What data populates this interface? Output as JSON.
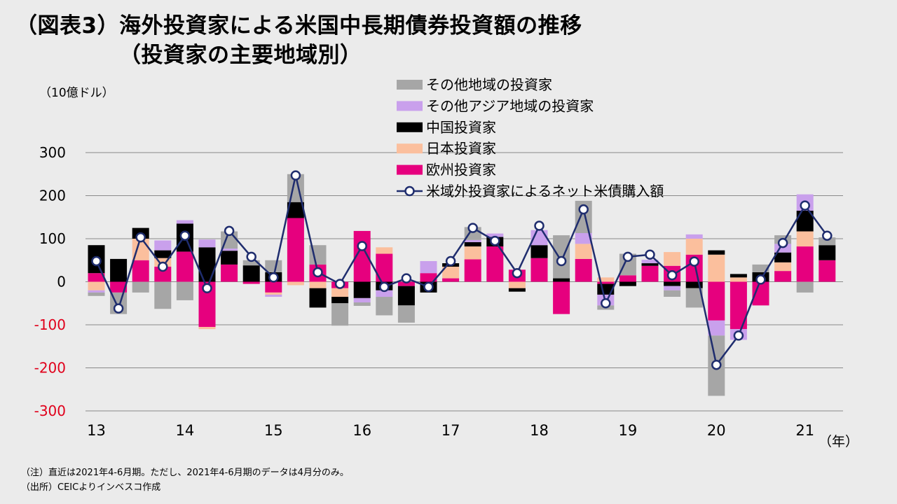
{
  "title": {
    "line1": "（図表3）海外投資家による米国中長期債券投資額の推移",
    "line2": "（投資家の主要地域別）"
  },
  "notes": [
    "（注）直近は2021年4-6月期。ただし、2021年4-6月期のデータは4月分のみ。",
    "（出所）CEICよりインベスコ作成"
  ],
  "chart_data": {
    "type": "bar",
    "stacked": true,
    "unit_label": "（10億ドル）",
    "x_suffix": "（年）",
    "ylim": [
      -300,
      300
    ],
    "y_ticks": [
      300,
      200,
      100,
      0,
      -100,
      -200,
      -300
    ],
    "grid": true,
    "negative_tick_color": "#e0001b",
    "year_labels": [
      {
        "label": "13",
        "index": 0
      },
      {
        "label": "14",
        "index": 4
      },
      {
        "label": "15",
        "index": 8
      },
      {
        "label": "16",
        "index": 12
      },
      {
        "label": "17",
        "index": 16
      },
      {
        "label": "18",
        "index": 20
      },
      {
        "label": "19",
        "index": 24
      },
      {
        "label": "20",
        "index": 28
      },
      {
        "label": "21",
        "index": 32
      }
    ],
    "categories": [
      "13Q1",
      "13Q2",
      "13Q3",
      "13Q4",
      "14Q1",
      "14Q2",
      "14Q3",
      "14Q4",
      "15Q1",
      "15Q2",
      "15Q3",
      "15Q4",
      "16Q1",
      "16Q2",
      "16Q3",
      "16Q4",
      "17Q1",
      "17Q2",
      "17Q3",
      "17Q4",
      "18Q1",
      "18Q2",
      "18Q3",
      "18Q4",
      "19Q1",
      "19Q2",
      "19Q3",
      "19Q4",
      "20Q1",
      "20Q2",
      "20Q3",
      "20Q4",
      "21Q1",
      "21Q2"
    ],
    "series": [
      {
        "name": "欧州投資家",
        "color": "#e6007e",
        "values": [
          20,
          -25,
          50,
          35,
          70,
          -105,
          40,
          -5,
          -25,
          148,
          40,
          -15,
          118,
          65,
          -10,
          20,
          8,
          52,
          82,
          28,
          55,
          -75,
          53,
          -5,
          15,
          37,
          37,
          63,
          -90,
          -110,
          -55,
          25,
          82,
          50
        ]
      },
      {
        "name": "日本投資家",
        "color": "#fbbf9d",
        "values": [
          -20,
          0,
          50,
          20,
          0,
          -5,
          0,
          0,
          -5,
          -8,
          -15,
          -20,
          0,
          15,
          0,
          0,
          27,
          30,
          0,
          -15,
          0,
          0,
          35,
          10,
          0,
          0,
          32,
          37,
          63,
          10,
          0,
          20,
          35,
          0
        ]
      },
      {
        "name": "中国投資家",
        "color": "#000000",
        "values": [
          65,
          53,
          25,
          18,
          65,
          80,
          32,
          38,
          22,
          37,
          -45,
          -15,
          -38,
          -20,
          -45,
          -25,
          8,
          10,
          22,
          -8,
          30,
          8,
          0,
          -25,
          -10,
          6,
          -10,
          -15,
          10,
          8,
          22,
          23,
          48,
          35
        ]
      },
      {
        "name": "その他アジア地域の投資家",
        "color": "#c9a0ec",
        "values": [
          -5,
          0,
          0,
          23,
          8,
          18,
          5,
          0,
          -5,
          0,
          0,
          0,
          -10,
          -15,
          0,
          28,
          0,
          5,
          8,
          0,
          35,
          0,
          25,
          -25,
          0,
          8,
          -10,
          10,
          -35,
          -25,
          0,
          20,
          38,
          0
        ]
      },
      {
        "name": "その他地域の投資家",
        "color": "#a6a6a6",
        "values": [
          -8,
          -50,
          -25,
          -63,
          -43,
          0,
          40,
          12,
          28,
          65,
          45,
          -52,
          -8,
          -43,
          -40,
          0,
          0,
          30,
          0,
          0,
          0,
          100,
          75,
          -10,
          50,
          0,
          -15,
          -45,
          -140,
          0,
          18,
          20,
          -25,
          18
        ]
      }
    ],
    "line": {
      "name": "米域外投資家によるネット米債購入額",
      "color": "#1f2d6e",
      "values": [
        48,
        -62,
        103,
        35,
        107,
        -15,
        118,
        58,
        10,
        247,
        22,
        -5,
        83,
        -12,
        8,
        -12,
        48,
        125,
        95,
        20,
        130,
        48,
        168,
        -50,
        58,
        63,
        15,
        47,
        -193,
        -125,
        5,
        90,
        177,
        107
      ]
    }
  }
}
